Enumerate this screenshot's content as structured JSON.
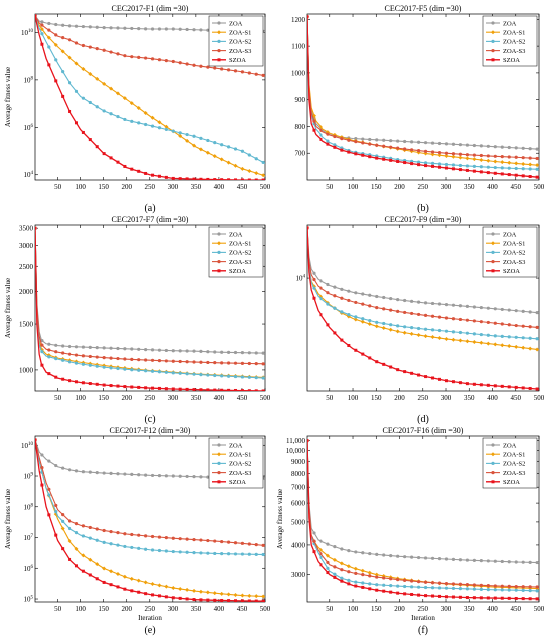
{
  "figure": {
    "series_names": [
      "ZOA",
      "ZOA-S1",
      "ZOA-S2",
      "ZOA-S3",
      "SZOA"
    ],
    "series_colors": [
      "#9b9b9b",
      "#f0a00a",
      "#60b8d0",
      "#d9533b",
      "#e8131c"
    ]
  },
  "chart_data": [
    {
      "type": "line",
      "caption": "(a)",
      "title": "CEC2017-F1 (dim =30)",
      "xlabel": "",
      "ylabel": "Average fitness value",
      "yscale": "log",
      "xlim": [
        1,
        500
      ],
      "ylim": [
        6000,
        60000000000
      ],
      "xticks": [
        50,
        100,
        150,
        200,
        250,
        300,
        350,
        400,
        450,
        500
      ],
      "xtick_labels": [
        "50",
        "100",
        "150",
        "200",
        "250",
        "300",
        "350",
        "400",
        "450",
        "500"
      ],
      "yticks": [
        10000,
        1000000,
        100000000,
        10000000000
      ],
      "ytick_labels": [
        "10^4",
        "10^6",
        "10^8",
        "10^10"
      ],
      "x": [
        1,
        10,
        25,
        50,
        75,
        100,
        150,
        200,
        250,
        300,
        350,
        400,
        450,
        500
      ],
      "series": [
        {
          "name": "ZOA",
          "values": [
            50000000000,
            30000000000,
            25000000000,
            21000000000,
            19000000000,
            18000000000,
            16000000000,
            15000000000,
            14000000000,
            14000000000,
            13000000000,
            12000000000,
            12000000000,
            11000000000
          ]
        },
        {
          "name": "ZOA-S1",
          "values": [
            50000000000,
            20000000000,
            8000000000,
            2500000000,
            900000000,
            350000000,
            70000000,
            15000000,
            3000000,
            700000,
            150000,
            50000,
            18000,
            9000
          ]
        },
        {
          "name": "ZOA-S2",
          "values": [
            50000000000,
            15000000000,
            4000000000,
            500000000,
            80000000,
            20000000,
            5000000,
            2000000,
            1200000,
            700000,
            400000,
            200000,
            100000,
            30000
          ]
        },
        {
          "name": "ZOA-S3",
          "values": [
            50000000000,
            25000000000,
            15000000000,
            7000000000,
            5000000000,
            3000000000,
            1800000000,
            1000000000,
            800000000,
            600000000,
            400000000,
            300000000,
            220000000,
            150000000
          ]
        },
        {
          "name": "SZOA",
          "values": [
            50000000000,
            8000000000,
            800000000,
            60000000,
            5000000,
            800000,
            80000,
            20000,
            10000,
            7000,
            6500,
            6200,
            6000,
            6000
          ]
        }
      ]
    },
    {
      "type": "line",
      "caption": "(b)",
      "title": "CEC2017-F5 (dim =30)",
      "xlabel": "",
      "ylabel": "",
      "yscale": "linear",
      "xlim": [
        1,
        500
      ],
      "ylim": [
        600,
        1220
      ],
      "xticks": [
        50,
        100,
        150,
        200,
        250,
        300,
        350,
        400,
        450,
        500
      ],
      "xtick_labels": [
        "50",
        "100",
        "150",
        "200",
        "250",
        "300",
        "350",
        "400",
        "450",
        "500"
      ],
      "yticks": [
        700,
        800,
        900,
        1000,
        1100,
        1200
      ],
      "ytick_labels": [
        "700",
        "800",
        "900",
        "1000",
        "1100",
        "1200"
      ],
      "x": [
        1,
        5,
        10,
        20,
        35,
        50,
        75,
        100,
        150,
        200,
        250,
        300,
        350,
        400,
        450,
        500
      ],
      "series": [
        {
          "name": "ZOA",
          "values": [
            1210,
            950,
            860,
            810,
            785,
            770,
            760,
            755,
            750,
            745,
            740,
            735,
            730,
            725,
            720,
            715
          ]
        },
        {
          "name": "ZOA-S1",
          "values": [
            1210,
            960,
            870,
            820,
            790,
            775,
            760,
            748,
            730,
            715,
            700,
            690,
            680,
            670,
            662,
            655
          ]
        },
        {
          "name": "ZOA-S2",
          "values": [
            1210,
            930,
            840,
            790,
            760,
            740,
            720,
            705,
            690,
            675,
            665,
            658,
            652,
            647,
            643,
            640
          ]
        },
        {
          "name": "ZOA-S3",
          "values": [
            1210,
            940,
            850,
            800,
            780,
            768,
            755,
            745,
            730,
            718,
            708,
            700,
            694,
            689,
            685,
            680
          ]
        },
        {
          "name": "SZOA",
          "values": [
            1210,
            900,
            810,
            770,
            745,
            730,
            712,
            700,
            682,
            668,
            655,
            645,
            635,
            626,
            618,
            610
          ]
        }
      ]
    },
    {
      "type": "line",
      "caption": "(c)",
      "title": "CEC2017-F7 (dim =30)",
      "xlabel": "",
      "ylabel": "Average fitness value",
      "yscale": "log",
      "xlim": [
        1,
        500
      ],
      "ylim": [
        830,
        3600
      ],
      "xticks": [
        50,
        100,
        150,
        200,
        250,
        300,
        350,
        400,
        450,
        500
      ],
      "xtick_labels": [
        "50",
        "100",
        "150",
        "200",
        "250",
        "300",
        "350",
        "400",
        "450",
        "500"
      ],
      "yticks": [
        1000,
        1500,
        2000,
        2500,
        3000,
        3500
      ],
      "ytick_labels": [
        "1000",
        "1500",
        "2000",
        "2500",
        "3000",
        "3500"
      ],
      "x": [
        1,
        5,
        10,
        15,
        25,
        50,
        75,
        100,
        150,
        200,
        250,
        300,
        350,
        400,
        450,
        500
      ],
      "series": [
        {
          "name": "ZOA",
          "values": [
            3500,
            1800,
            1400,
            1300,
            1260,
            1240,
            1230,
            1225,
            1215,
            1205,
            1195,
            1185,
            1180,
            1170,
            1165,
            1160
          ]
        },
        {
          "name": "ZOA-S1",
          "values": [
            3500,
            1700,
            1300,
            1200,
            1150,
            1110,
            1090,
            1070,
            1040,
            1015,
            995,
            980,
            965,
            955,
            945,
            935
          ]
        },
        {
          "name": "ZOA-S2",
          "values": [
            3500,
            1650,
            1250,
            1180,
            1130,
            1100,
            1075,
            1055,
            1025,
            1005,
            990,
            975,
            962,
            950,
            940,
            930
          ]
        },
        {
          "name": "ZOA-S3",
          "values": [
            3500,
            1750,
            1350,
            1250,
            1200,
            1170,
            1150,
            1135,
            1115,
            1100,
            1090,
            1080,
            1072,
            1065,
            1060,
            1055
          ]
        },
        {
          "name": "SZOA",
          "values": [
            3500,
            1500,
            1150,
            1050,
            980,
            930,
            910,
            895,
            875,
            862,
            852,
            845,
            840,
            836,
            833,
            830
          ]
        }
      ]
    },
    {
      "type": "line",
      "caption": "(d)",
      "title": "CEC2017-F9 (dim =30)",
      "xlabel": "",
      "ylabel": "",
      "yscale": "log",
      "xlim": [
        1,
        500
      ],
      "ylim": [
        1700,
        23000
      ],
      "xticks": [
        50,
        100,
        150,
        200,
        250,
        300,
        350,
        400,
        450,
        500
      ],
      "xtick_labels": [
        "50",
        "100",
        "150",
        "200",
        "250",
        "300",
        "350",
        "400",
        "450",
        "500"
      ],
      "yticks": [
        10000
      ],
      "ytick_labels": [
        "10^4"
      ],
      "x": [
        1,
        5,
        10,
        25,
        50,
        75,
        100,
        150,
        200,
        250,
        300,
        350,
        400,
        450,
        500
      ],
      "series": [
        {
          "name": "ZOA",
          "values": [
            22000,
            14000,
            11500,
            9800,
            8900,
            8400,
            8000,
            7500,
            7100,
            6800,
            6600,
            6400,
            6200,
            6000,
            5800
          ]
        },
        {
          "name": "ZOA-S1",
          "values": [
            22000,
            12000,
            9500,
            7800,
            6600,
            5800,
            5300,
            4700,
            4300,
            4050,
            3850,
            3700,
            3550,
            3400,
            3250
          ]
        },
        {
          "name": "ZOA-S2",
          "values": [
            22000,
            12000,
            9300,
            7500,
            6500,
            5900,
            5500,
            5000,
            4700,
            4500,
            4350,
            4200,
            4050,
            3950,
            3850
          ]
        },
        {
          "name": "ZOA-S3",
          "values": [
            22000,
            13000,
            10500,
            8800,
            7800,
            7300,
            6900,
            6300,
            5900,
            5600,
            5350,
            5150,
            4950,
            4750,
            4600
          ]
        },
        {
          "name": "SZOA",
          "values": [
            22000,
            11000,
            8300,
            6000,
            4600,
            3800,
            3300,
            2700,
            2350,
            2150,
            2000,
            1900,
            1850,
            1800,
            1750
          ]
        }
      ]
    },
    {
      "type": "line",
      "caption": "(e)",
      "title": "CEC2017-F12 (dim =30)",
      "xlabel": "Iteration",
      "ylabel": "Average fitness value",
      "yscale": "log",
      "xlim": [
        1,
        500
      ],
      "ylim": [
        80000,
        20000000000
      ],
      "xticks": [
        50,
        100,
        150,
        200,
        250,
        300,
        350,
        400,
        450,
        500
      ],
      "xtick_labels": [
        "50",
        "100",
        "150",
        "200",
        "250",
        "300",
        "350",
        "400",
        "450",
        "500"
      ],
      "yticks": [
        100000,
        1000000,
        10000000,
        100000000,
        1000000000,
        10000000000
      ],
      "ytick_labels": [
        "10^5",
        "10^6",
        "10^7",
        "10^8",
        "10^9",
        "10^10"
      ],
      "x": [
        1,
        10,
        25,
        50,
        75,
        100,
        150,
        200,
        250,
        300,
        350,
        400,
        450,
        500
      ],
      "series": [
        {
          "name": "ZOA",
          "values": [
            15000000000,
            6000000000,
            3500000000,
            2000000000,
            1600000000,
            1400000000,
            1250000000,
            1150000000,
            1050000000,
            1000000000,
            950000000,
            900000000,
            870000000,
            850000000
          ]
        },
        {
          "name": "ZOA-S1",
          "values": [
            15000000000,
            3000000000,
            400000000,
            40000000,
            8000000,
            3000000,
            1000000,
            500000,
            320000,
            230000,
            180000,
            150000,
            130000,
            120000
          ]
        },
        {
          "name": "ZOA-S2",
          "values": [
            15000000000,
            3000000000,
            400000000,
            50000000,
            20000000,
            12000000,
            7000000,
            5000000,
            4000000,
            3500000,
            3200000,
            3000000,
            2900000,
            2800000
          ]
        },
        {
          "name": "ZOA-S3",
          "values": [
            15000000000,
            4000000000,
            600000000,
            80000000,
            35000000,
            25000000,
            17000000,
            13000000,
            11000000,
            9500000,
            8500000,
            7500000,
            6500000,
            5500000
          ]
        },
        {
          "name": "SZOA",
          "values": [
            15000000000,
            1500000000,
            100000000,
            8000000,
            2000000,
            900000,
            350000,
            200000,
            140000,
            110000,
            95000,
            90000,
            87000,
            85000
          ]
        }
      ]
    },
    {
      "type": "line",
      "caption": "(f)",
      "title": "CEC2017-F16 (dim =30)",
      "xlabel": "Iteration",
      "ylabel": "Average fitness value",
      "yscale": "log",
      "xlim": [
        1,
        500
      ],
      "ylim": [
        2300,
        11500
      ],
      "xticks": [
        50,
        100,
        150,
        200,
        250,
        300,
        350,
        400,
        450,
        500
      ],
      "xtick_labels": [
        "50",
        "100",
        "150",
        "200",
        "250",
        "300",
        "350",
        "400",
        "450",
        "500"
      ],
      "yticks": [
        3000,
        4000,
        5000,
        6000,
        7000,
        8000,
        9000,
        10000,
        11000
      ],
      "ytick_labels": [
        "3000",
        "4000",
        "5000",
        "6000",
        "7000",
        "8000",
        "9000",
        "10,000",
        "11,000"
      ],
      "x": [
        1,
        5,
        10,
        25,
        50,
        75,
        100,
        150,
        200,
        250,
        300,
        350,
        400,
        450,
        500
      ],
      "series": [
        {
          "name": "ZOA",
          "values": [
            11000,
            6000,
            4700,
            4200,
            4000,
            3850,
            3750,
            3650,
            3580,
            3530,
            3490,
            3450,
            3420,
            3390,
            3370
          ]
        },
        {
          "name": "ZOA-S1",
          "values": [
            11000,
            5500,
            4300,
            3900,
            3550,
            3350,
            3200,
            3000,
            2880,
            2800,
            2740,
            2700,
            2660,
            2640,
            2620
          ]
        },
        {
          "name": "ZOA-S2",
          "values": [
            11000,
            5500,
            4300,
            3700,
            3100,
            2900,
            2800,
            2720,
            2680,
            2650,
            2630,
            2610,
            2590,
            2580,
            2560
          ]
        },
        {
          "name": "ZOA-S3",
          "values": [
            11000,
            5800,
            4400,
            3800,
            3300,
            3150,
            3050,
            2930,
            2850,
            2790,
            2750,
            2720,
            2690,
            2670,
            2660
          ]
        },
        {
          "name": "SZOA",
          "values": [
            11000,
            5200,
            4000,
            3400,
            3000,
            2820,
            2700,
            2580,
            2500,
            2450,
            2420,
            2400,
            2390,
            2380,
            2370
          ]
        }
      ]
    }
  ]
}
